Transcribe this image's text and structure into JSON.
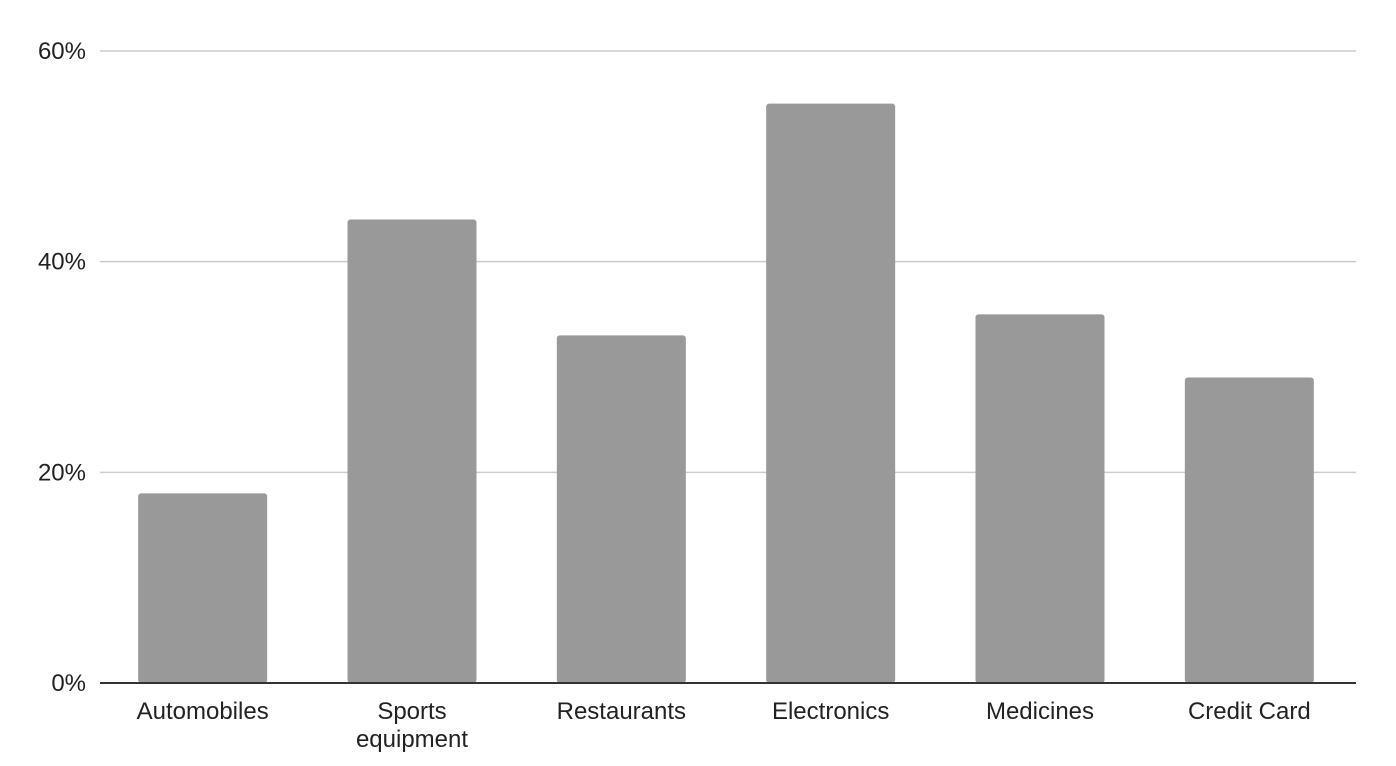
{
  "chart_data": {
    "type": "bar",
    "title": "",
    "xlabel": "",
    "ylabel": "",
    "categories": [
      [
        "Automobiles"
      ],
      [
        "Sports",
        "equipment"
      ],
      [
        "Restaurants"
      ],
      [
        "Electronics"
      ],
      [
        "Medicines"
      ],
      [
        "Credit Card"
      ]
    ],
    "values": [
      18,
      44,
      33,
      55,
      35,
      29
    ],
    "ylim": [
      0,
      60
    ],
    "yticks": [
      0,
      20,
      40,
      60
    ],
    "ytick_labels": [
      "0%",
      "20%",
      "40%",
      "60%"
    ],
    "grid": true,
    "legend": "none",
    "bar_color": "#999999"
  }
}
